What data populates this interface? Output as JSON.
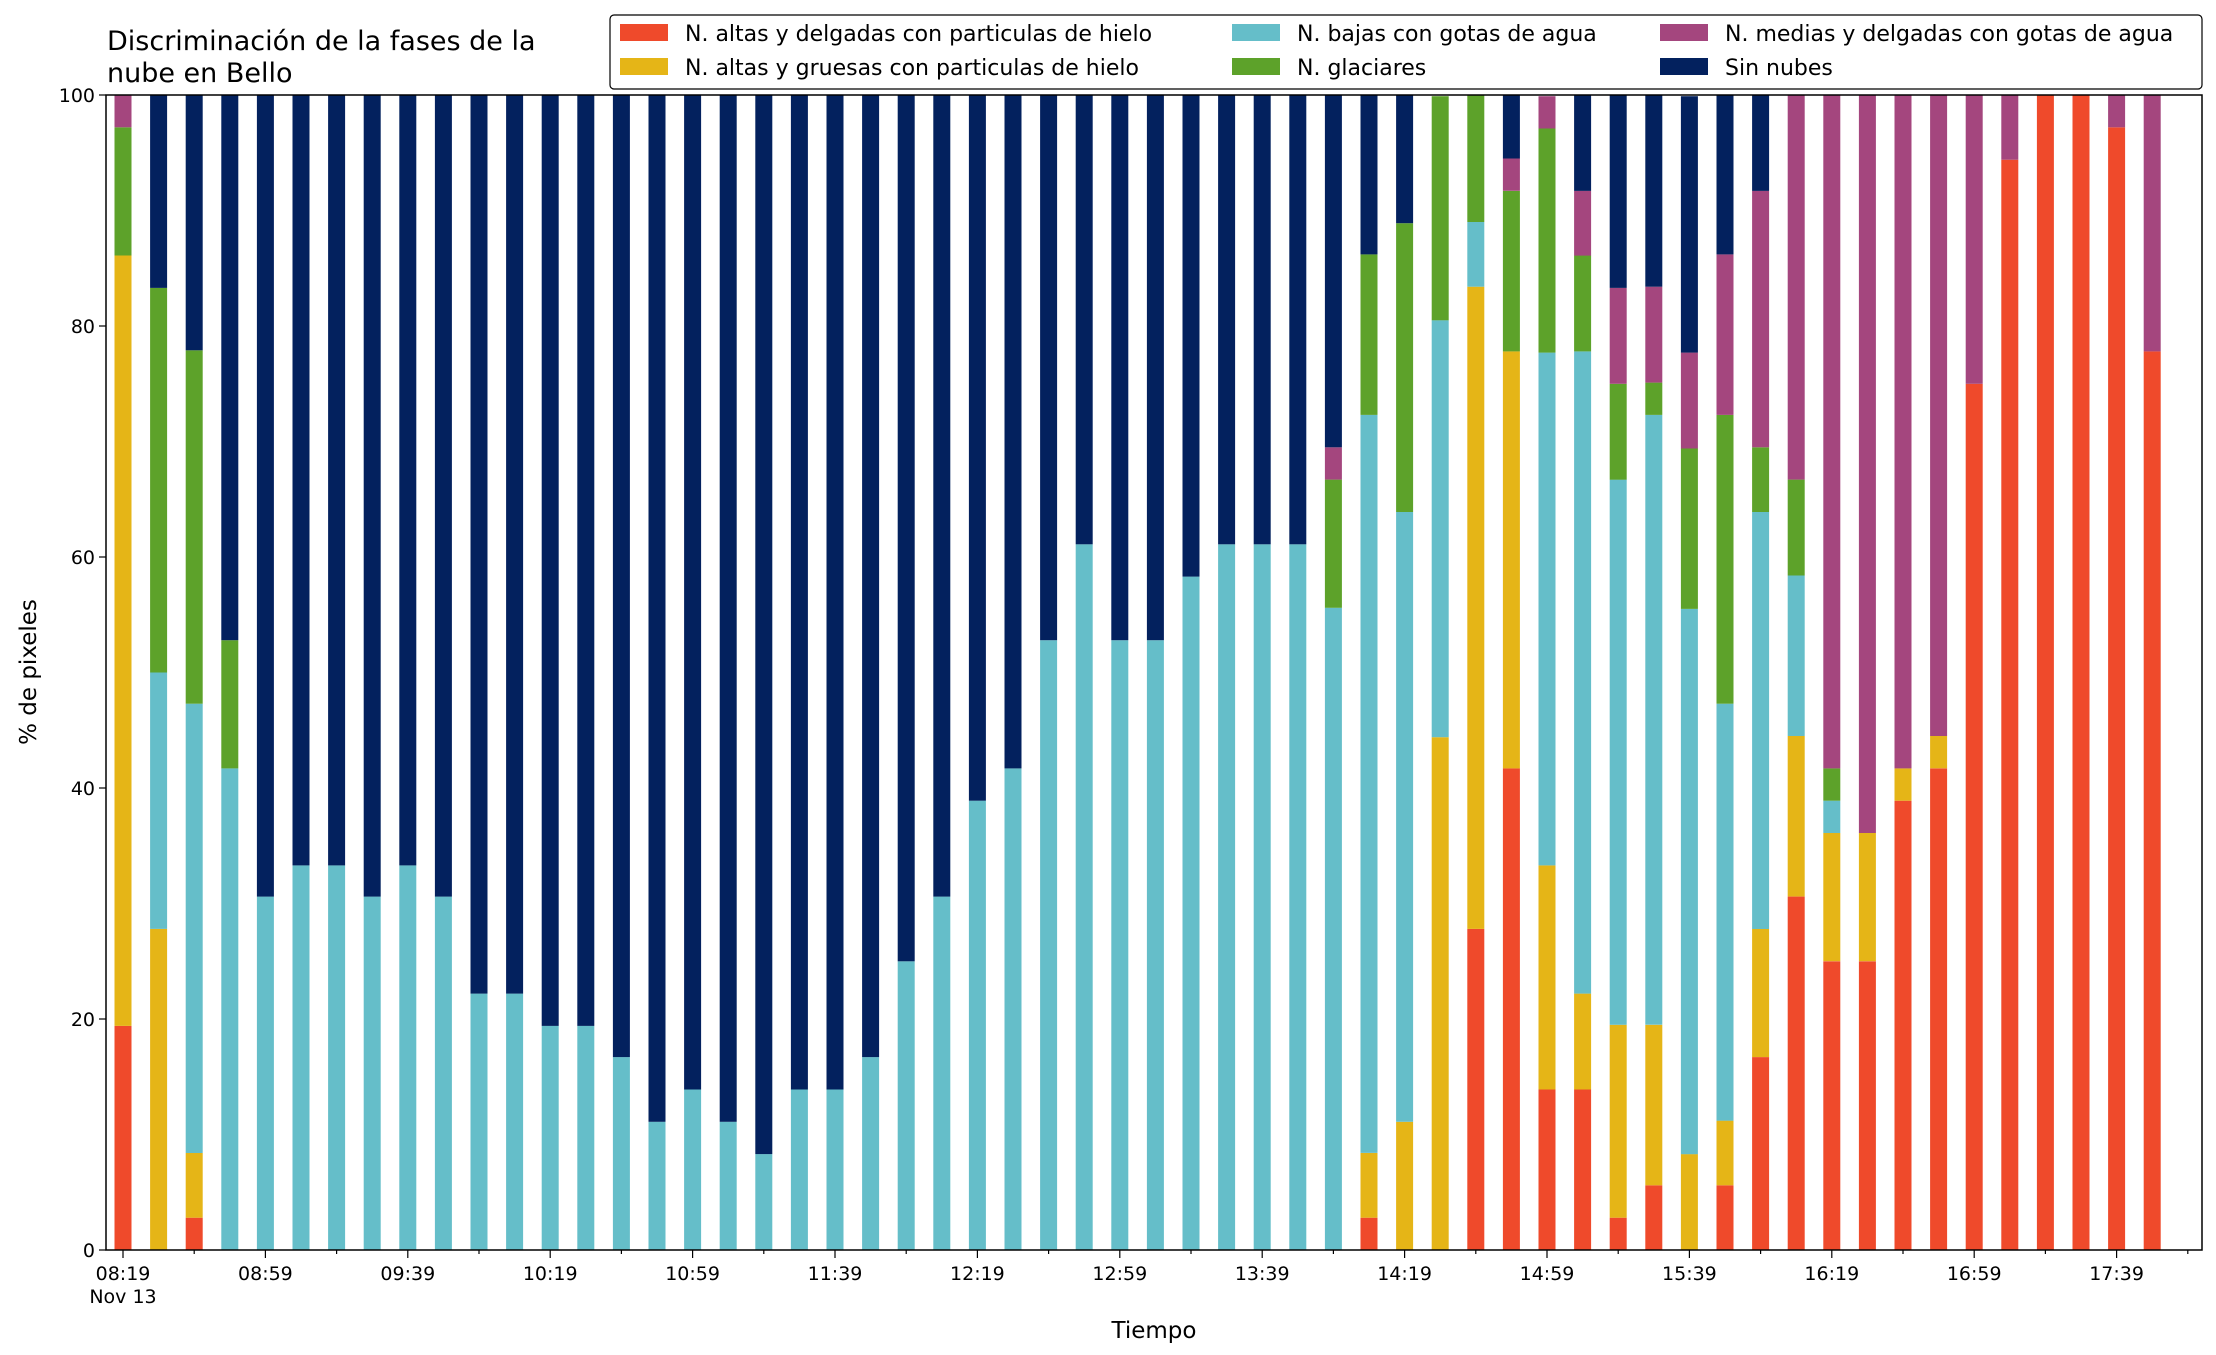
{
  "chart_data": {
    "type": "bar",
    "stacked": true,
    "title": "Discriminación de la fases de la nube en Bello",
    "title_lines": [
      "Discriminación de la fases de la",
      "nube en Bello"
    ],
    "xlabel": "Tiempo",
    "ylabel": "% de pixeles",
    "ylim": [
      0,
      100
    ],
    "y_ticks": [
      "0",
      "20",
      "40",
      "60",
      "80",
      "100"
    ],
    "x_ticks": [
      {
        "label": "08:19",
        "sublabel": "Nov 13",
        "bar_index": 0
      },
      {
        "label": "08:59",
        "bar_index": 4
      },
      {
        "label": "09:39",
        "bar_index": 8
      },
      {
        "label": "10:19",
        "bar_index": 12
      },
      {
        "label": "10:59",
        "bar_index": 16
      },
      {
        "label": "11:39",
        "bar_index": 20
      },
      {
        "label": "12:19",
        "bar_index": 24
      },
      {
        "label": "12:59",
        "bar_index": 28
      },
      {
        "label": "13:39",
        "bar_index": 32
      },
      {
        "label": "14:19",
        "bar_index": 36
      },
      {
        "label": "14:59",
        "bar_index": 40
      },
      {
        "label": "15:39",
        "bar_index": 44
      },
      {
        "label": "16:19",
        "bar_index": 48
      },
      {
        "label": "16:59",
        "bar_index": 52
      },
      {
        "label": "17:39",
        "bar_index": 56
      }
    ],
    "grid": false,
    "legend_position": "top-right",
    "legend_columns": 3,
    "series": [
      {
        "name": "N. altas y delgadas con particulas de hielo",
        "color": "#ef4a2b",
        "values": [
          19.4,
          0,
          2.8,
          0,
          0,
          0,
          0,
          0,
          0,
          0,
          0,
          0,
          0,
          0,
          0,
          0,
          0,
          0,
          0,
          0,
          0,
          0,
          0,
          0,
          0,
          0,
          0,
          0,
          0,
          0,
          0,
          0,
          0,
          0,
          0,
          2.8,
          0,
          0,
          27.8,
          41.7,
          13.9,
          13.9,
          2.8,
          5.6,
          0,
          5.6,
          16.7,
          30.6,
          25.0,
          25.0,
          38.9,
          41.7,
          75.0,
          94.4,
          100,
          100,
          97.2,
          77.8
        ]
      },
      {
        "name": "N. altas y gruesas con particulas de hielo",
        "color": "#e5b517",
        "values": [
          66.7,
          27.8,
          5.6,
          0,
          0,
          0,
          0,
          0,
          0,
          0,
          0,
          0,
          0,
          0,
          0,
          0,
          0,
          0,
          0,
          0,
          0,
          0,
          0,
          0,
          0,
          0,
          0,
          0,
          0,
          0,
          0,
          0,
          0,
          0,
          0,
          5.6,
          11.1,
          44.4,
          55.6,
          36.1,
          19.4,
          8.3,
          16.7,
          13.9,
          8.3,
          5.6,
          11.1,
          13.9,
          11.1,
          11.1,
          2.8,
          2.8,
          0,
          0,
          0,
          0,
          0,
          0
        ]
      },
      {
        "name": "N. bajas con gotas de agua",
        "color": "#65bec9",
        "values": [
          0,
          22.2,
          38.9,
          41.7,
          30.6,
          33.3,
          33.3,
          30.6,
          33.3,
          30.6,
          22.2,
          22.2,
          19.4,
          19.4,
          16.7,
          11.1,
          13.9,
          11.1,
          8.3,
          13.9,
          13.9,
          16.7,
          25.0,
          30.6,
          38.9,
          41.7,
          52.8,
          61.1,
          52.8,
          52.8,
          58.3,
          61.1,
          61.1,
          61.1,
          55.6,
          63.9,
          52.8,
          36.1,
          5.6,
          0,
          44.4,
          55.6,
          47.2,
          52.8,
          47.2,
          36.1,
          36.1,
          13.9,
          2.8,
          0,
          0,
          0,
          0,
          0,
          0,
          0,
          0,
          0
        ]
      },
      {
        "name": "N. glaciares",
        "color": "#5da22a",
        "values": [
          11.1,
          33.3,
          30.6,
          11.1,
          0,
          0,
          0,
          0,
          0,
          0,
          0,
          0,
          0,
          0,
          0,
          0,
          0,
          0,
          0,
          0,
          0,
          0,
          0,
          0,
          0,
          0,
          0,
          0,
          0,
          0,
          0,
          0,
          0,
          0,
          11.1,
          13.9,
          25.0,
          19.4,
          11.1,
          13.9,
          19.4,
          8.3,
          8.3,
          2.8,
          13.9,
          25.0,
          5.6,
          8.3,
          2.8,
          0,
          0,
          0,
          0,
          0,
          0,
          0,
          0,
          0
        ]
      },
      {
        "name": "N. medias y delgadas con gotas de agua",
        "color": "#a4467e",
        "values": [
          2.8,
          0,
          0,
          0,
          0,
          0,
          0,
          0,
          0,
          0,
          0,
          0,
          0,
          0,
          0,
          0,
          0,
          0,
          0,
          0,
          0,
          0,
          0,
          0,
          0,
          0,
          0,
          0,
          0,
          0,
          0,
          0,
          0,
          0,
          2.8,
          0,
          0,
          0,
          0,
          2.8,
          2.8,
          5.6,
          8.3,
          8.3,
          8.3,
          13.9,
          22.2,
          33.3,
          58.3,
          63.9,
          58.3,
          55.6,
          25.0,
          5.6,
          0,
          0,
          2.8,
          22.2
        ]
      },
      {
        "name": "Sin nubes",
        "color": "#03215e",
        "values": [
          0,
          16.7,
          22.2,
          47.2,
          69.4,
          66.7,
          66.7,
          69.4,
          66.7,
          69.4,
          77.8,
          77.8,
          80.6,
          80.6,
          83.3,
          88.9,
          86.1,
          88.9,
          91.7,
          86.1,
          86.1,
          83.3,
          75.0,
          69.4,
          61.1,
          58.3,
          47.2,
          38.9,
          47.2,
          47.2,
          41.7,
          38.9,
          38.9,
          38.9,
          30.6,
          13.9,
          11.1,
          0,
          0,
          5.6,
          0,
          8.3,
          16.7,
          16.7,
          22.2,
          13.9,
          8.3,
          0,
          0,
          0,
          0,
          0,
          0,
          0,
          0,
          0,
          0,
          0
        ]
      }
    ]
  }
}
